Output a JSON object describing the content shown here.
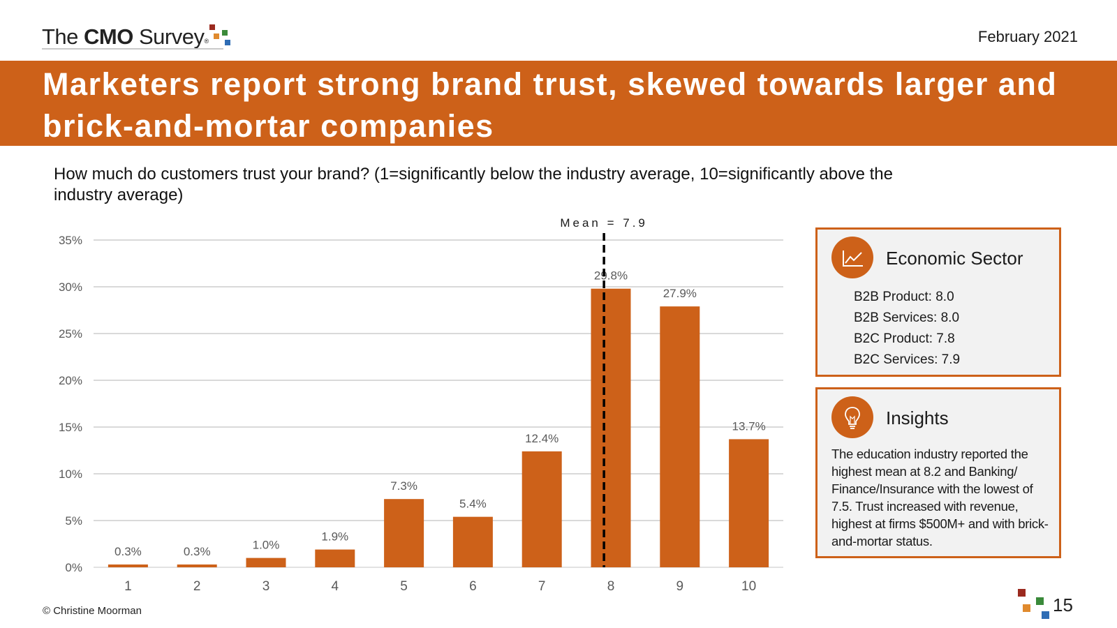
{
  "header": {
    "logo": {
      "prefix": "The ",
      "bold": "CMO",
      "suffix": " Survey",
      "reg": "®"
    },
    "date": "February 2021"
  },
  "title": "Marketers report strong brand trust, skewed towards larger and brick-and-mortar companies",
  "question": "How much do customers trust your brand?  (1=significantly below the industry average, 10=significantly above the industry average)",
  "chart_data": {
    "type": "bar",
    "title": "",
    "xlabel": "",
    "ylabel": "",
    "categories": [
      "1",
      "2",
      "3",
      "4",
      "5",
      "6",
      "7",
      "8",
      "9",
      "10"
    ],
    "values": [
      0.3,
      0.3,
      1.0,
      1.9,
      7.3,
      5.4,
      12.4,
      29.8,
      27.9,
      13.7
    ],
    "value_labels": [
      "0.3%",
      "0.3%",
      "1.0%",
      "1.9%",
      "7.3%",
      "5.4%",
      "12.4%",
      "29.8%",
      "27.9%",
      "13.7%"
    ],
    "ylim": [
      0,
      35
    ],
    "yticks": [
      0,
      5,
      10,
      15,
      20,
      25,
      30,
      35
    ],
    "ytick_labels": [
      "0%",
      "5%",
      "10%",
      "15%",
      "20%",
      "25%",
      "30%",
      "35%"
    ],
    "grid": true,
    "bar_color": "#cd6119",
    "mean_line": {
      "value": 7.9,
      "label": "Mean = 7.9",
      "style": "dashed"
    }
  },
  "panels": {
    "economic_sector": {
      "icon": "line-chart-icon",
      "title": "Economic Sector",
      "items": [
        "B2B Product: 8.0",
        "B2B Services: 8.0",
        "B2C Product: 7.8",
        "B2C Services: 7.9"
      ]
    },
    "insights": {
      "icon": "lightbulb-icon",
      "title": "Insights",
      "text": "The education industry reported the highest mean at 8.2 and Banking/ Finance/Insurance with the lowest of 7.5. Trust increased with revenue, highest at firms $500M+ and with brick-and-mortar status."
    }
  },
  "footer": {
    "copyright": "© Christine Moorman",
    "page_number": "15"
  },
  "colors": {
    "accent": "#cd6119",
    "logo_squares": [
      "#9b2a1f",
      "#e08a2e",
      "#3a8a3a",
      "#2f6db5"
    ]
  }
}
